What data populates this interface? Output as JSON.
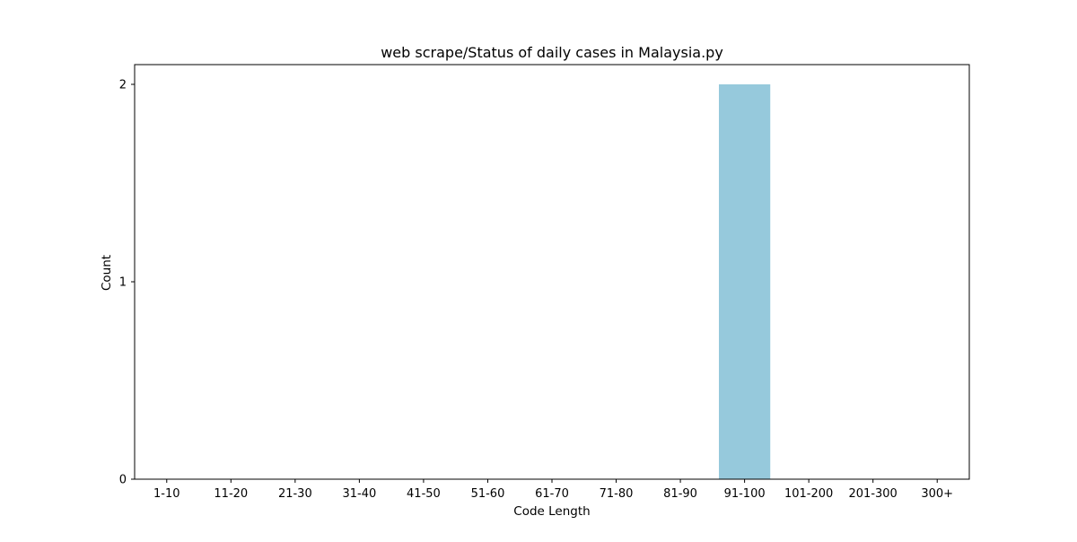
{
  "chart_data": {
    "type": "bar",
    "title": "web scrape/Status of daily cases in Malaysia.py",
    "xlabel": "Code Length",
    "ylabel": "Count",
    "categories": [
      "1-10",
      "11-20",
      "21-30",
      "31-40",
      "41-50",
      "51-60",
      "61-70",
      "71-80",
      "81-90",
      "91-100",
      "101-200",
      "201-300",
      "300+"
    ],
    "values": [
      0,
      0,
      0,
      0,
      0,
      0,
      0,
      0,
      0,
      2,
      0,
      0,
      0
    ],
    "ylim": [
      0,
      2.1
    ],
    "yticks": [
      0,
      1,
      2
    ],
    "grid": false,
    "bar_color": "#96c9dc"
  }
}
